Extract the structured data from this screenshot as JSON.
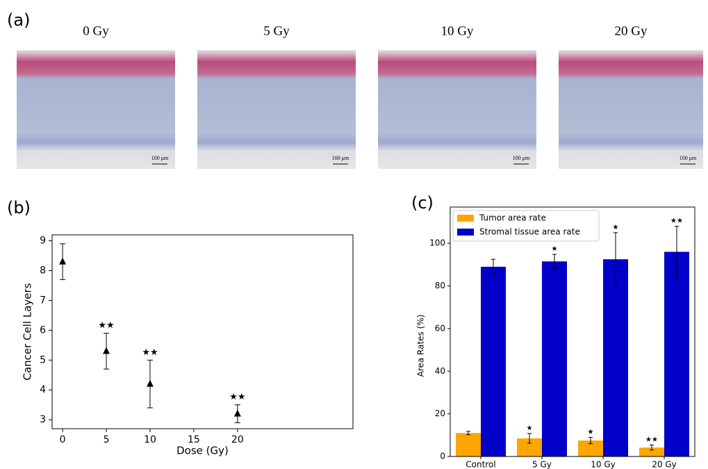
{
  "figure": {
    "panel": "(a)",
    "images": [
      {
        "caption": "0 Gy",
        "scale_label": "100 μm"
      },
      {
        "caption": "5 Gy",
        "scale_label": "100 μm"
      },
      {
        "caption": "10 Gy",
        "scale_label": "100 μm"
      },
      {
        "caption": "20 Gy",
        "scale_label": "100 μm"
      }
    ]
  },
  "chart_data": [
    {
      "type": "scatter",
      "panel": "(b)",
      "xlabel": "Dose (Gy)",
      "ylabel": "Cancer Cell Layers",
      "x": [
        0,
        5,
        10,
        20
      ],
      "values": [
        8.3,
        5.3,
        4.2,
        3.2
      ],
      "errors": [
        0.6,
        0.6,
        0.8,
        0.3
      ],
      "annotations": [
        null,
        "★★",
        "★★",
        "★★"
      ],
      "color": "#000000",
      "xlim": [
        -1.2,
        33.2
      ],
      "xticks": [
        0,
        5,
        10,
        15,
        20
      ],
      "ylim": [
        2.7,
        9.2
      ],
      "yticks": [
        3,
        4,
        5,
        6,
        7,
        8,
        9
      ]
    },
    {
      "type": "bar",
      "panel": "(c)",
      "ylabel": "Area Rates (%)",
      "legend": "upper left",
      "categories": [
        "Control",
        "5 Gy",
        "10 Gy",
        "20 Gy"
      ],
      "series": [
        {
          "name": "Tumor area rate",
          "color": "#ffa500",
          "values": [
            11,
            8.5,
            7.5,
            4.2
          ],
          "errors": [
            0.8,
            2.3,
            1.5,
            1.2
          ],
          "annotations": [
            null,
            "★",
            "★",
            "★★"
          ]
        },
        {
          "name": "Stromal tissue area rate",
          "color": "#0000c8",
          "values": [
            89,
            91.5,
            92.5,
            96
          ],
          "errors": [
            3.5,
            3.3,
            12.5,
            12
          ],
          "annotations": [
            null,
            "★",
            "★",
            "★★"
          ]
        }
      ],
      "ylim": [
        0,
        117
      ],
      "yticks": [
        0,
        20,
        40,
        60,
        80,
        100
      ]
    }
  ]
}
